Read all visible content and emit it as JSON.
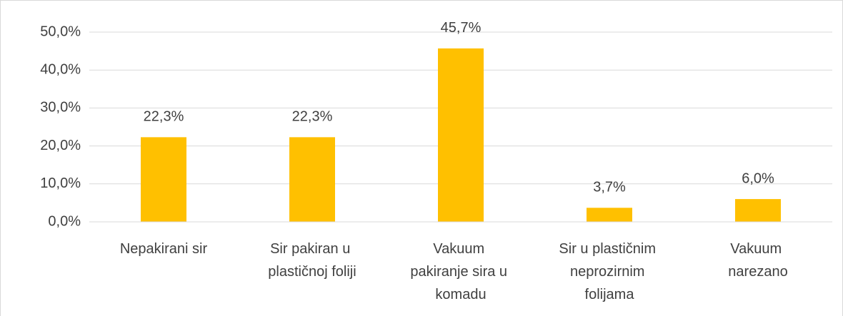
{
  "chart_data": {
    "type": "bar",
    "categories": [
      "Nepakirani sir",
      "Sir pakiran u plastičnoj foliji",
      "Vakuum pakiranje sira u komadu",
      "Sir u plastičnim neprozirnim folijama",
      "Vakuum narezano"
    ],
    "values": [
      22.3,
      22.3,
      45.7,
      3.7,
      6.0
    ],
    "value_labels": [
      "22,3%",
      "22,3%",
      "45,7%",
      "3,7%",
      "6,0%"
    ],
    "color": "#ffc000",
    "ylim": [
      0,
      50
    ],
    "yticks": [
      {
        "value": 0,
        "label": "0,0%"
      },
      {
        "value": 10,
        "label": "10,0%"
      },
      {
        "value": 20,
        "label": "20,0%"
      },
      {
        "value": 30,
        "label": "30,0%"
      },
      {
        "value": 40,
        "label": "40,0%"
      },
      {
        "value": 50,
        "label": "50,0%"
      }
    ],
    "grid": true
  }
}
